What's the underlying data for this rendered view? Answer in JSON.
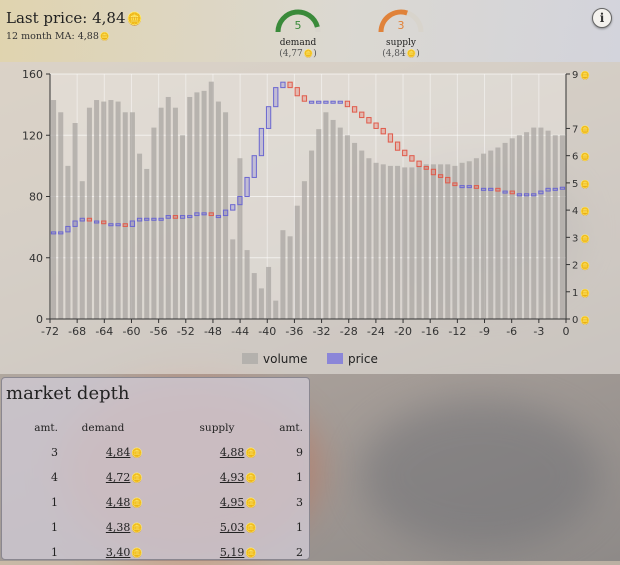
{
  "header": {
    "last_price_label": "Last price:",
    "last_price_value": "4,84",
    "ma_label": "12 month MA:",
    "ma_value": "4,88",
    "demand": {
      "count": "5",
      "label": "demand",
      "value": "4,77",
      "color": "#3a8a3a",
      "level": 0.92
    },
    "supply": {
      "count": "3",
      "label": "supply",
      "value": "4,84",
      "color": "#e0823a",
      "level": 0.6
    },
    "info_label": "i",
    "coin_icon": "coin-icon"
  },
  "legend": {
    "volume": "volume",
    "price": "price",
    "volume_color": "#b4b1ad",
    "price_color": "#8b86d8"
  },
  "chart_data": {
    "type": "bar",
    "x_ticks": [
      "-72",
      "-68",
      "-64",
      "-60",
      "-56",
      "-52",
      "-48",
      "-44",
      "-40",
      "-36",
      "-32",
      "-28",
      "-24",
      "-20",
      "-16",
      "-12",
      "-9",
      "-6",
      "-3",
      "0"
    ],
    "left_axis": {
      "ticks": [
        "0",
        "40",
        "80",
        "120",
        "160"
      ],
      "range": [
        0,
        160
      ]
    },
    "right_axis": {
      "ticks": [
        "0",
        "1",
        "2",
        "3",
        "4",
        "5",
        "6",
        "7",
        "9"
      ]
    },
    "volume": [
      143,
      135,
      100,
      128,
      90,
      138,
      143,
      142,
      143,
      142,
      135,
      135,
      108,
      98,
      125,
      138,
      145,
      138,
      120,
      145,
      148,
      149,
      155,
      142,
      135,
      52,
      105,
      45,
      30,
      20,
      34,
      12,
      58,
      54,
      74,
      90,
      110,
      124,
      135,
      130,
      125,
      120,
      115,
      110,
      105,
      102,
      101,
      100,
      100,
      99,
      99,
      100,
      101,
      101,
      101,
      101,
      100,
      102,
      103,
      105,
      108,
      110,
      112,
      115,
      118,
      120,
      122,
      125,
      125,
      123,
      120,
      120
    ],
    "price": [
      3.2,
      3.2,
      3.4,
      3.6,
      3.7,
      3.6,
      3.6,
      3.5,
      3.5,
      3.5,
      3.4,
      3.6,
      3.7,
      3.7,
      3.7,
      3.7,
      3.8,
      3.7,
      3.8,
      3.8,
      3.9,
      3.9,
      3.8,
      3.8,
      4.0,
      4.2,
      4.5,
      5.2,
      6.0,
      7.0,
      7.8,
      8.5,
      8.7,
      8.5,
      8.2,
      8.0,
      8.0,
      8.0,
      8.0,
      8.0,
      8.0,
      7.8,
      7.6,
      7.4,
      7.2,
      7.0,
      6.8,
      6.5,
      6.2,
      6.0,
      5.8,
      5.6,
      5.5,
      5.3,
      5.2,
      5.0,
      4.9,
      4.9,
      4.9,
      4.8,
      4.8,
      4.8,
      4.7,
      4.7,
      4.6,
      4.6,
      4.6,
      4.6,
      4.7,
      4.8,
      4.8,
      4.84
    ]
  },
  "depth": {
    "title": "market depth",
    "headers": {
      "amt": "amt.",
      "demand": "demand",
      "supply": "supply",
      "amt2": "amt."
    },
    "rows": [
      {
        "amt": "3",
        "demand": "4,84",
        "supply": "4,88",
        "amt2": "9"
      },
      {
        "amt": "4",
        "demand": "4,72",
        "supply": "4,93",
        "amt2": "1"
      },
      {
        "amt": "1",
        "demand": "4,48",
        "supply": "4,95",
        "amt2": "3"
      },
      {
        "amt": "1",
        "demand": "4,38",
        "supply": "5,03",
        "amt2": "1"
      },
      {
        "amt": "1",
        "demand": "3,40",
        "supply": "5,19",
        "amt2": "2"
      }
    ]
  }
}
